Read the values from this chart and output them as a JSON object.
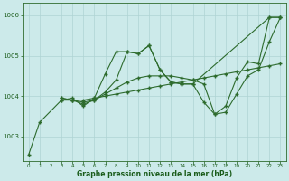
{
  "bg_color": "#cceaea",
  "grid_color": "#b0d8d8",
  "line_color": "#2d6b2d",
  "marker_color": "#2d6b2d",
  "xlabel": "Graphe pression niveau de la mer (hPa)",
  "xlabel_color": "#1a5c1a",
  "ylim": [
    1002.4,
    1006.3
  ],
  "xlim": [
    -0.5,
    23.5
  ],
  "yticks": [
    1003,
    1004,
    1005,
    1006
  ],
  "xticks": [
    0,
    1,
    2,
    3,
    4,
    5,
    6,
    7,
    8,
    9,
    10,
    11,
    12,
    13,
    14,
    15,
    16,
    17,
    18,
    19,
    20,
    21,
    22,
    23
  ],
  "series": [
    {
      "x": [
        0,
        1,
        3,
        4,
        5,
        6,
        7,
        8,
        9,
        10,
        11,
        12,
        13,
        14,
        15,
        16,
        17,
        18,
        19,
        20,
        21,
        22,
        23
      ],
      "y": [
        1002.55,
        1003.35,
        1003.9,
        1003.95,
        1003.75,
        1003.95,
        1004.55,
        1005.1,
        1005.1,
        1005.05,
        1005.25,
        1004.65,
        1004.35,
        1004.3,
        1004.3,
        1003.85,
        1003.55,
        1003.75,
        1004.45,
        1004.85,
        1004.8,
        1005.95,
        1005.95
      ]
    },
    {
      "x": [
        3,
        4,
        5,
        6,
        7,
        8,
        9,
        10,
        11,
        12,
        13,
        14,
        15,
        16,
        17,
        18,
        19,
        20,
        21,
        22,
        23
      ],
      "y": [
        1003.9,
        1003.9,
        1003.9,
        1003.95,
        1004.0,
        1004.05,
        1004.1,
        1004.15,
        1004.2,
        1004.25,
        1004.3,
        1004.35,
        1004.4,
        1004.45,
        1004.5,
        1004.55,
        1004.6,
        1004.65,
        1004.7,
        1004.75,
        1004.8
      ]
    },
    {
      "x": [
        3,
        4,
        5,
        6,
        7,
        8,
        9,
        10,
        11,
        12,
        13,
        14,
        15,
        16,
        17,
        18,
        19,
        20,
        21,
        22,
        23
      ],
      "y": [
        1003.95,
        1003.9,
        1003.85,
        1003.9,
        1004.05,
        1004.2,
        1004.35,
        1004.45,
        1004.5,
        1004.5,
        1004.5,
        1004.45,
        1004.4,
        1004.3,
        1003.55,
        1003.6,
        1004.05,
        1004.5,
        1004.65,
        1005.35,
        1005.95
      ]
    },
    {
      "x": [
        3,
        4,
        5,
        6,
        7,
        8,
        9,
        10,
        11,
        12,
        13,
        14,
        15,
        22,
        23
      ],
      "y": [
        1003.95,
        1003.9,
        1003.8,
        1003.9,
        1004.1,
        1004.4,
        1005.1,
        1005.05,
        1005.25,
        1004.65,
        1004.35,
        1004.3,
        1004.3,
        1005.95,
        1005.95
      ]
    }
  ]
}
